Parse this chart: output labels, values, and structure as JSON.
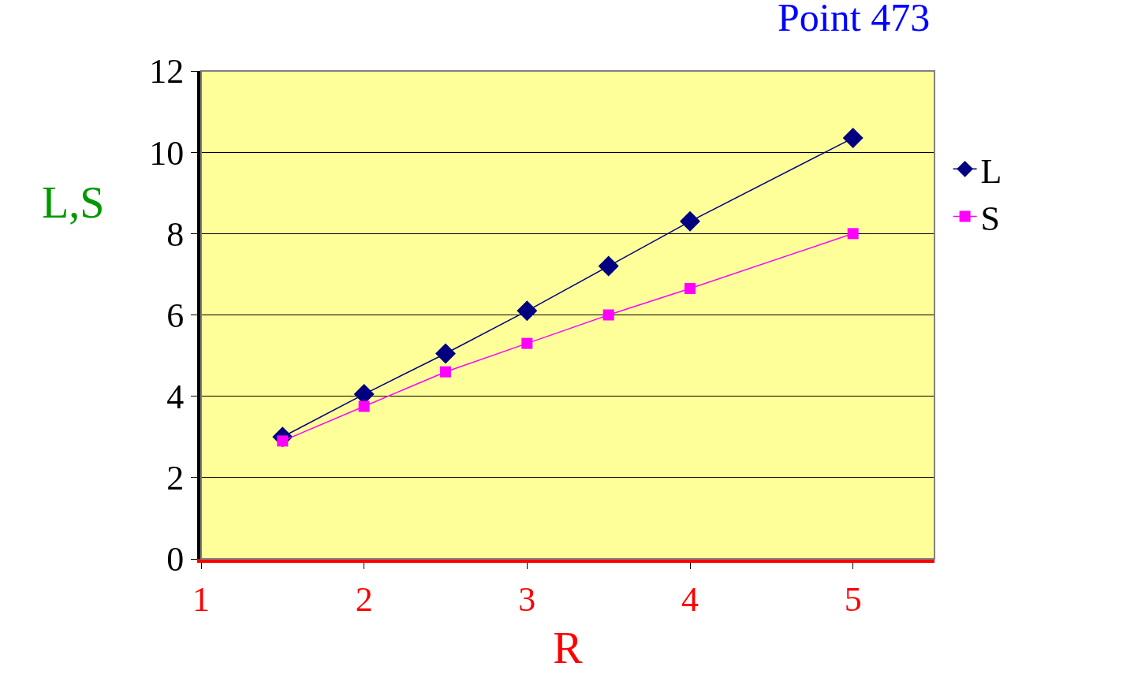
{
  "chart_data": {
    "type": "line",
    "title": "Point 473",
    "xlabel": "R",
    "ylabel": "L,S",
    "x": [
      1.5,
      2,
      2.5,
      3,
      3.5,
      4,
      5
    ],
    "series": [
      {
        "name": "L",
        "color": "#000080",
        "marker": "diamond",
        "values": [
          3.0,
          4.05,
          5.05,
          6.1,
          7.2,
          8.3,
          10.35
        ]
      },
      {
        "name": "S",
        "color": "#ff00ff",
        "marker": "square",
        "values": [
          2.9,
          3.75,
          4.6,
          5.3,
          6.0,
          6.65,
          8.0
        ]
      }
    ],
    "xlim": [
      1,
      5.5
    ],
    "xticks": [
      1,
      2,
      3,
      4,
      5
    ],
    "ylim": [
      0,
      12
    ],
    "yticks": [
      0,
      2,
      4,
      6,
      8,
      10,
      12
    ],
    "grid": "y",
    "legend": "right",
    "line_style": "solid"
  }
}
